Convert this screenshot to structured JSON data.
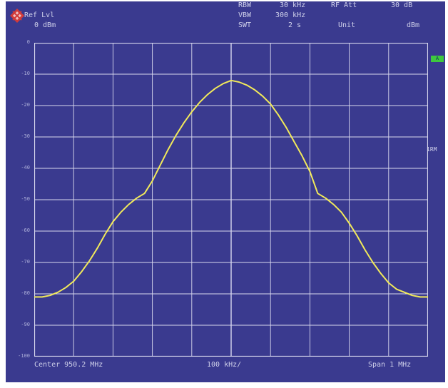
{
  "header": {
    "ref_lvl_label": "Ref Lvl",
    "ref_lvl_value": "0 dBm",
    "rbw_label": "RBW",
    "rbw_value": "30 kHz",
    "rf_att_label": "RF Att",
    "rf_att_value": "30 dB",
    "vbw_label": "VBW",
    "vbw_value": "300 kHz",
    "swt_label": "SWT",
    "swt_value": "2 s",
    "unit_label": "Unit",
    "unit_value": "dBm"
  },
  "side": {
    "badge": "A",
    "label": "1RM"
  },
  "footer": {
    "center": "Center 950.2 MHz",
    "div": "100 kHz/",
    "span": "Span 1 MHz"
  },
  "colors": {
    "background": "#3a3a8f",
    "grid": "#d8d8ee",
    "trace": "#f2ea5a",
    "badge": "#3ec83e"
  },
  "chart_data": {
    "type": "line",
    "title": "",
    "xlabel": "",
    "ylabel": "",
    "x_unit": "MHz",
    "y_unit": "dBm",
    "xlim": [
      949.7,
      950.7
    ],
    "ylim": [
      -100,
      0
    ],
    "ytick_labels": [
      "0",
      "-10",
      "-20",
      "-30",
      "-40",
      "-50",
      "-60",
      "-70",
      "-80",
      "-90",
      "-100"
    ],
    "grid": true,
    "legend": "none",
    "series": [
      {
        "x": [
          949.7,
          949.72,
          949.74,
          949.76,
          949.78,
          949.8,
          949.82,
          949.84,
          949.86,
          949.88,
          949.9,
          949.92,
          949.94,
          949.96,
          949.98,
          950.0,
          950.02,
          950.04,
          950.06,
          950.08,
          950.1,
          950.12,
          950.14,
          950.16,
          950.18,
          950.2,
          950.22,
          950.24,
          950.26,
          950.28,
          950.3,
          950.32,
          950.34,
          950.36,
          950.38,
          950.4,
          950.42,
          950.44,
          950.46,
          950.48,
          950.5,
          950.52,
          950.54,
          950.56,
          950.58,
          950.6,
          950.62,
          950.64,
          950.66,
          950.68,
          950.7
        ],
        "y": [
          -81,
          -81,
          -80.5,
          -79.5,
          -78,
          -76,
          -73,
          -69.5,
          -65.5,
          -61,
          -57,
          -54,
          -51.5,
          -49.5,
          -48,
          -44,
          -39,
          -34,
          -29.5,
          -25.5,
          -22,
          -19,
          -16.5,
          -14.5,
          -13,
          -12,
          -12.5,
          -13.5,
          -15,
          -17,
          -19.5,
          -23,
          -27,
          -31.5,
          -36,
          -41,
          -48,
          -49.5,
          -51.5,
          -54,
          -57.5,
          -61.5,
          -66,
          -70,
          -73.5,
          -76.5,
          -78.5,
          -79.5,
          -80.5,
          -81,
          -81
        ]
      }
    ]
  }
}
